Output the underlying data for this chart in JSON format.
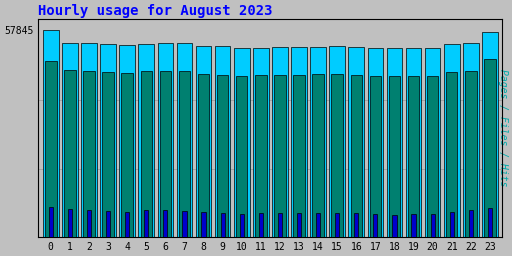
{
  "title": "Hourly usage for August 2023",
  "hours": [
    0,
    1,
    2,
    3,
    4,
    5,
    6,
    7,
    8,
    9,
    10,
    11,
    12,
    13,
    14,
    15,
    16,
    17,
    18,
    19,
    20,
    21,
    22,
    23
  ],
  "hits": [
    57845,
    54200,
    54100,
    53800,
    53600,
    53900,
    54000,
    54000,
    53300,
    53200,
    52700,
    52800,
    52900,
    52900,
    53100,
    53200,
    53000,
    52700,
    52600,
    52700,
    52700,
    53800,
    54100,
    57300
  ],
  "files": [
    49000,
    46500,
    46400,
    46000,
    45800,
    46200,
    46300,
    46200,
    45600,
    45200,
    45000,
    45100,
    45200,
    45200,
    45400,
    45500,
    45300,
    45000,
    44900,
    45000,
    45000,
    46100,
    46400,
    49800
  ],
  "pages": [
    8500,
    7800,
    7600,
    7200,
    7100,
    7400,
    7500,
    7300,
    6900,
    6700,
    6500,
    6600,
    6600,
    6600,
    6700,
    6800,
    6600,
    6400,
    6200,
    6300,
    6300,
    7100,
    7400,
    8200
  ],
  "bar_color_hits": "#00ccff",
  "bar_color_files": "#008070",
  "bar_color_pages": "#0000cc",
  "background_color": "#c0c0c0",
  "plot_bg_color": "#c0c0c0",
  "title_color": "#0000ff",
  "ylabel_color": "#00aaaa",
  "border_color": "#000000",
  "ylabel": "Pages / Files / Hits",
  "ylim_min": 0,
  "ylim_max": 57845,
  "title_fontsize": 10,
  "axis_fontsize": 7,
  "ylabel_fontsize": 7
}
